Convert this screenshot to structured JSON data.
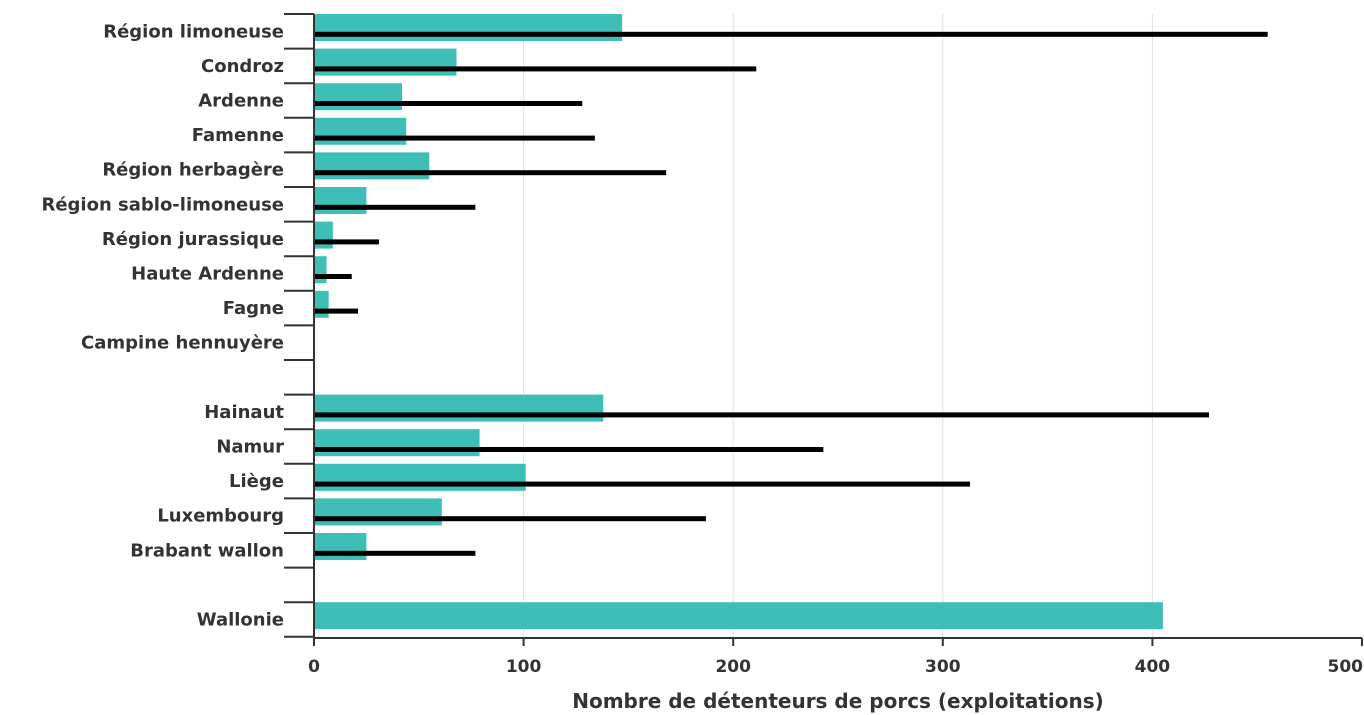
{
  "chart_data": {
    "type": "bar",
    "orientation": "horizontal",
    "categories": [
      "Région limoneuse",
      "Condroz",
      "Ardenne",
      "Famenne",
      "Région herbagère",
      "Région sablo-limoneuse",
      "Région jurassique",
      "Haute Ardenne",
      "Fagne",
      "Campine hennuyère",
      "",
      "Hainaut",
      "Namur",
      "Liège",
      "Luxembourg",
      "Brabant wallon",
      "",
      "Wallonie"
    ],
    "series": [
      {
        "color": "#3dbfb8",
        "style": "wide bar",
        "values": [
          147,
          68,
          42,
          44,
          55,
          25,
          9,
          6,
          7,
          0,
          null,
          138,
          79,
          101,
          61,
          25,
          null,
          405
        ]
      },
      {
        "color": "#000000",
        "style": "thin bar",
        "values": [
          455,
          211,
          128,
          134,
          168,
          77,
          31,
          18,
          21,
          0,
          null,
          427,
          243,
          313,
          187,
          77,
          null,
          0
        ]
      }
    ],
    "xlabel": "Nombre de détenteurs de porcs (exploitations)",
    "ylabel": "",
    "xlim": [
      0,
      500
    ],
    "xticks": [
      "0",
      "100",
      "200",
      "300",
      "400",
      "500"
    ],
    "grid": "vertical",
    "legend": "none"
  }
}
